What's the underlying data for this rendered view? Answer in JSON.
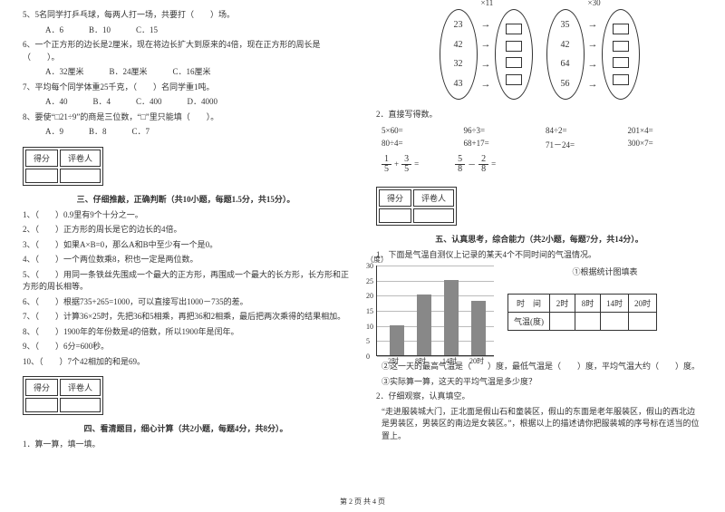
{
  "leftCol": {
    "q5": "5、5名同学打乒乓球，每两人打一场，共要打（　　）场。",
    "q5opts": [
      "A．6",
      "B．10",
      "C．15"
    ],
    "q6": "6、一个正方形的边长是2厘米，现在将边长扩大到原来的4倍，现在正方形的周长是（　　）。",
    "q6opts": [
      "A．32厘米",
      "B．24厘米",
      "C．16厘米"
    ],
    "q7": "7、平均每个同学体重25千克，（　　）名同学重1吨。",
    "q7opts": [
      "A．40",
      "B．4",
      "C．400",
      "D．4000"
    ],
    "q8": "8、要使“□21÷9”的商是三位数，“□”里只能填（　　）。",
    "q8opts": [
      "A．9",
      "B．8",
      "C．7"
    ],
    "scoreHdr": [
      "得分",
      "评卷人"
    ],
    "sec3": "三、仔细推敲，正确判断（共10小题，每题1.5分，共15分）。",
    "j": [
      "1、（　　）0.9里有9个十分之一。",
      "2、（　　）正方形的周长是它的边长的4倍。",
      "3、（　　）如果A×B=0，那么A和B中至少有一个是0。",
      "4、（　　）一个两位数乘8，积也一定是两位数。",
      "5、（　　）用同一条铁丝先围成一个最大的正方形，再围成一个最大的长方形，长方形和正方形的周长相等。",
      "6、（　　）根据735+265=1000，可以直接写出1000－735的差。",
      "7、（　　）计算36×25时，先把36和5相乘，再把36和2相乘，最后把两次乘得的结果相加。",
      "8、（　　）1900年的年份数是4的倍数，所以1900年是闰年。",
      "9、（　　）6分=600秒。",
      "10、（　　）7个42相加的和是69。"
    ],
    "sec4": "四、看清题目，细心计算（共2小题，每题4分，共8分）。",
    "q4_1": "1．算一算，填一填。"
  },
  "rightCol": {
    "ovals": {
      "left": {
        "mult": "×11",
        "vals": [
          "23",
          "42",
          "32",
          "43"
        ]
      },
      "right": {
        "mult": "×30",
        "vals": [
          "35",
          "42",
          "64",
          "56"
        ]
      }
    },
    "q2": "2．直接写得数。",
    "calcs": [
      "5×60=",
      "96÷3=",
      "84÷2=",
      "201×4=",
      "80÷4=",
      "68+17=",
      "71－24=",
      "300×7="
    ],
    "fracs": [
      {
        "a": {
          "n": "1",
          "d": "5"
        },
        "op": "+",
        "b": {
          "n": "3",
          "d": "5"
        },
        "eq": "="
      },
      {
        "a": {
          "n": "5",
          "d": "8"
        },
        "op": "－",
        "b": {
          "n": "2",
          "d": "8"
        },
        "eq": "="
      }
    ],
    "scoreHdr": [
      "得分",
      "评卷人"
    ],
    "sec5": "五、认真思考，综合能力（共2小题，每题7分，共14分）。",
    "q5_1": "1．下面是气温自测仪上记录的某天4个不同时间的气温情况。",
    "chart": {
      "ylabel": "（度）",
      "yticks": [
        0,
        5,
        10,
        15,
        20,
        25,
        30
      ],
      "ymax": 30,
      "xlabels": [
        "2时",
        "8时",
        "14时",
        "20时"
      ],
      "bars": [
        10,
        20,
        25,
        18
      ],
      "bar_color": "#888888",
      "grid_color": "#bbbbbb"
    },
    "chartTitle": "①根据统计图填表",
    "tableHdr": [
      "时　间",
      "2时",
      "8时",
      "14时",
      "20时"
    ],
    "tableRow": [
      "气温(度)",
      "",
      "",
      "",
      ""
    ],
    "notes": [
      "②这一天的最高气温是（　　）度，最低气温是（　　）度，平均气温大约（　　）度。",
      "③实际算一算，这天的平均气温是多少度？"
    ],
    "q5_2": "2．仔细观察，认真填空。",
    "q5_2txt": "“走进服装城大门，正北面是假山石和童装区，假山的东面是老年服装区，假山的西北边是男装区，男装区的南边是女装区。”，根据以上的描述请你把服装城的序号标在适当的位置上。"
  },
  "footer": "第 2 页 共 4 页"
}
